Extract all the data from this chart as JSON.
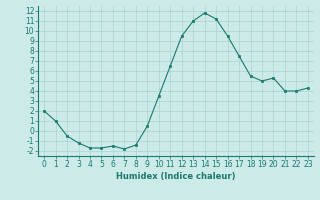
{
  "x": [
    0,
    1,
    2,
    3,
    4,
    5,
    6,
    7,
    8,
    9,
    10,
    11,
    12,
    13,
    14,
    15,
    16,
    17,
    18,
    19,
    20,
    21,
    22,
    23
  ],
  "y": [
    2,
    1,
    -0.5,
    -1.2,
    -1.7,
    -1.7,
    -1.5,
    -1.8,
    -1.4,
    0.5,
    3.5,
    6.5,
    9.5,
    11.0,
    11.8,
    11.2,
    9.5,
    7.5,
    5.5,
    5.0,
    5.3,
    4.0,
    4.0,
    4.3
  ],
  "xlabel": "Humidex (Indice chaleur)",
  "xlim": [
    -0.5,
    23.5
  ],
  "ylim": [
    -2.5,
    12.5
  ],
  "yticks": [
    -2,
    -1,
    0,
    1,
    2,
    3,
    4,
    5,
    6,
    7,
    8,
    9,
    10,
    11,
    12
  ],
  "xticks": [
    0,
    1,
    2,
    3,
    4,
    5,
    6,
    7,
    8,
    9,
    10,
    11,
    12,
    13,
    14,
    15,
    16,
    17,
    18,
    19,
    20,
    21,
    22,
    23
  ],
  "line_color": "#1a7a6e",
  "marker_color": "#1a7a6e",
  "bg_color": "#cceae7",
  "grid_color": "#aad4d0",
  "label_fontsize": 6,
  "tick_fontsize": 5.5
}
